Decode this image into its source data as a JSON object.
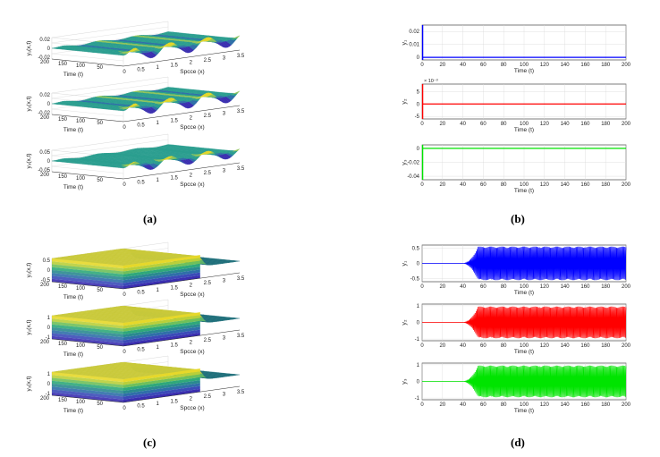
{
  "panel_labels": {
    "a": "(a)",
    "b": "(b)",
    "c": "(c)",
    "d": "(d)"
  },
  "colors": {
    "y1": "#0000ff",
    "y2": "#ff0000",
    "y3": "#00e400",
    "surface_dark": "#1f6f7a",
    "surface_mid": "#2a9d8f",
    "surface_yellow": "#e6d82a",
    "surface_blue": "#3b2fb0",
    "grid": "#d9d9d9",
    "axis": "#262626"
  },
  "chart_data": [
    {
      "id": "a",
      "type": "surface",
      "axis_labels": {
        "time": "Time (t)",
        "space": "Spcce (x)"
      },
      "time_ticks": [
        "200",
        "150",
        "100",
        "50",
        "0"
      ],
      "space_ticks": [
        "0",
        "0.5",
        "1",
        "1.5",
        "2",
        "2.5",
        "3",
        "3.5"
      ],
      "plots": [
        {
          "zlabel": "y₁(x,t)",
          "zticks": [
            "0.02",
            "0",
            "-0.02"
          ],
          "shape": "sine_decay",
          "amp": 0.6
        },
        {
          "zlabel": "y₂(x,t)",
          "zticks": [
            "0.02",
            "0",
            "-0.02"
          ],
          "shape": "sine_decay",
          "amp": 0.6
        },
        {
          "zlabel": "y₃(x,t)",
          "zticks": [
            "0.05",
            "0",
            "-0.05"
          ],
          "shape": "sine_decay",
          "amp": 0.5
        }
      ]
    },
    {
      "id": "b",
      "type": "line",
      "xlabel": "Time (t)",
      "x_ticks": [
        "0",
        "20",
        "40",
        "60",
        "80",
        "100",
        "120",
        "140",
        "160",
        "180",
        "200"
      ],
      "xlim": [
        0,
        200
      ],
      "plots": [
        {
          "ylabel": "y₁",
          "yticks": [
            "0.02",
            "0.01",
            "0"
          ],
          "ylim": [
            -0.002,
            0.025
          ],
          "color_key": "y1",
          "series": [
            {
              "x": 0,
              "y": 0.025
            },
            {
              "x": 1,
              "y": 0
            },
            {
              "x": 200,
              "y": 0
            }
          ],
          "spike_end": 1.5
        },
        {
          "ylabel": "y₂",
          "yticks": [
            "5",
            "0",
            "-5"
          ],
          "ylim": [
            -6,
            8
          ],
          "exponent": "× 10⁻³",
          "color_key": "y2",
          "series": [
            {
              "x": 0,
              "y": 0
            },
            {
              "x": 200,
              "y": 0
            }
          ],
          "spike_end": 2
        },
        {
          "ylabel": "y₃",
          "yticks": [
            "0",
            "-0.02",
            "-0.04"
          ],
          "ylim": [
            -0.045,
            0.005
          ],
          "color_key": "y3",
          "series": [
            {
              "x": 0,
              "y": -0.045
            },
            {
              "x": 1,
              "y": 0
            },
            {
              "x": 200,
              "y": 0
            }
          ],
          "spike_end": 1.5
        }
      ]
    },
    {
      "id": "c",
      "type": "surface",
      "axis_labels": {
        "time": "Time (t)",
        "space": "Spcce (x)"
      },
      "time_ticks": [
        "200",
        "150",
        "100",
        "50",
        "0"
      ],
      "space_ticks": [
        "0",
        "0.5",
        "1",
        "1.5",
        "2",
        "2.5",
        "3",
        "3.5"
      ],
      "plots": [
        {
          "zlabel": "y₁(x,t)",
          "zticks": [
            "0.5",
            "0",
            "-0.5"
          ],
          "shape": "block"
        },
        {
          "zlabel": "y₂(x,t)",
          "zticks": [
            "1",
            "0",
            "-1"
          ],
          "shape": "block"
        },
        {
          "zlabel": "y₃(x,t)",
          "zticks": [
            "1",
            "0",
            "-1"
          ],
          "shape": "block"
        }
      ]
    },
    {
      "id": "d",
      "type": "line",
      "xlabel": "Time (t)",
      "x_ticks": [
        "0",
        "20",
        "40",
        "60",
        "80",
        "100",
        "120",
        "140",
        "160",
        "180",
        "200"
      ],
      "xlim": [
        0,
        200
      ],
      "plots": [
        {
          "ylabel": "y₁",
          "yticks": [
            "0.5",
            "0",
            "-0.5"
          ],
          "ylim": [
            -0.6,
            0.6
          ],
          "color_key": "y1",
          "growth_start": 40,
          "saturation": 55,
          "amplitude": 0.55
        },
        {
          "ylabel": "y₂",
          "yticks": [
            "1",
            "0",
            "-1"
          ],
          "ylim": [
            -1.1,
            1.1
          ],
          "color_key": "y2",
          "growth_start": 40,
          "saturation": 55,
          "amplitude": 0.95
        },
        {
          "ylabel": "y₃",
          "yticks": [
            "1",
            "0",
            "-1"
          ],
          "ylim": [
            -1.1,
            1.1
          ],
          "color_key": "y3",
          "growth_start": 40,
          "saturation": 55,
          "amplitude": 0.95
        }
      ]
    }
  ]
}
